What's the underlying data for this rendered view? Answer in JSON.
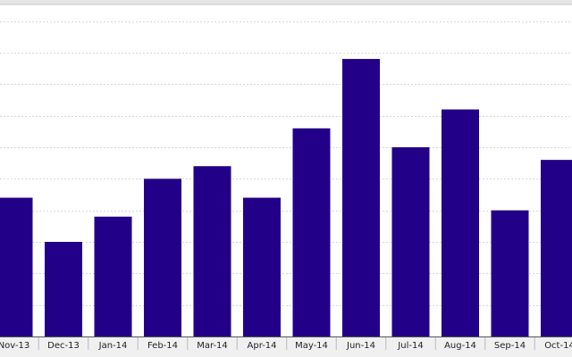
{
  "chart_data": {
    "type": "bar",
    "title": "",
    "xlabel": "",
    "ylabel": "",
    "categories": [
      "Nov-13",
      "Dec-13",
      "Jan-14",
      "Feb-14",
      "Mar-14",
      "Apr-14",
      "May-14",
      "Jun-14",
      "Jul-14",
      "Aug-14",
      "Sep-14",
      "Oct-14"
    ],
    "values": [
      4.4,
      3.0,
      3.8,
      5.0,
      5.4,
      4.4,
      6.6,
      8.8,
      6.0,
      7.2,
      4.0,
      5.6
    ],
    "ylim": [
      0,
      10.5
    ],
    "grid": true,
    "legend": "none",
    "colors": {
      "bar": "#220088",
      "grid": "#d8d8d8",
      "axis": "#555555",
      "label_band": "#f0f0f0",
      "top_band": "#e6e6e6"
    }
  }
}
